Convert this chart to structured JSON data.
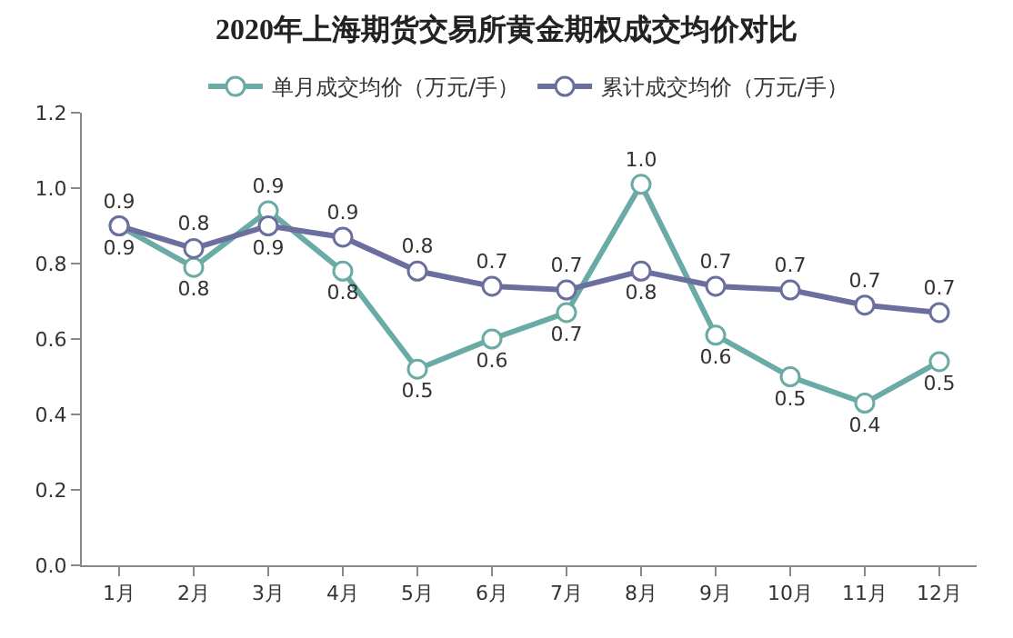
{
  "chart_data": {
    "type": "line",
    "title": "2020年上海期货交易所黄金期权成交均价对比",
    "categories": [
      "1月",
      "2月",
      "3月",
      "4月",
      "5月",
      "6月",
      "7月",
      "8月",
      "9月",
      "10月",
      "11月",
      "12月"
    ],
    "series": [
      {
        "name": "单月成交均价（万元/手）",
        "color": "#6aaba5",
        "values": [
          0.9,
          0.79,
          0.94,
          0.78,
          0.52,
          0.6,
          0.67,
          1.01,
          0.61,
          0.5,
          0.43,
          0.54
        ],
        "value_labels": [
          "0.9",
          "0.8",
          "0.9",
          "0.8",
          "0.5",
          "0.6",
          "0.7",
          "1.0",
          "0.6",
          "0.5",
          "0.4",
          "0.5"
        ]
      },
      {
        "name": "累计成交均价（万元/手）",
        "color": "#6b6f9e",
        "values": [
          0.9,
          0.84,
          0.9,
          0.87,
          0.78,
          0.74,
          0.73,
          0.78,
          0.74,
          0.73,
          0.69,
          0.67
        ],
        "value_labels": [
          "0.9",
          "0.8",
          "0.9",
          "0.9",
          "0.8",
          "0.7",
          "0.7",
          "0.8",
          "0.7",
          "0.7",
          "0.7",
          "0.7"
        ]
      }
    ],
    "ylim": [
      0,
      1.2
    ],
    "yticks": [
      {
        "value": 0,
        "label": "0.0"
      },
      {
        "value": 0.2,
        "label": "0.2"
      },
      {
        "value": 0.4,
        "label": "0.4"
      },
      {
        "value": 0.6,
        "label": "0.6"
      },
      {
        "value": 0.8,
        "label": "0.8"
      },
      {
        "value": 1.0,
        "label": "1.0"
      },
      {
        "value": 1.2,
        "label": "1.2"
      }
    ],
    "legend": "top",
    "marker": "circle",
    "line_style": "solid"
  }
}
